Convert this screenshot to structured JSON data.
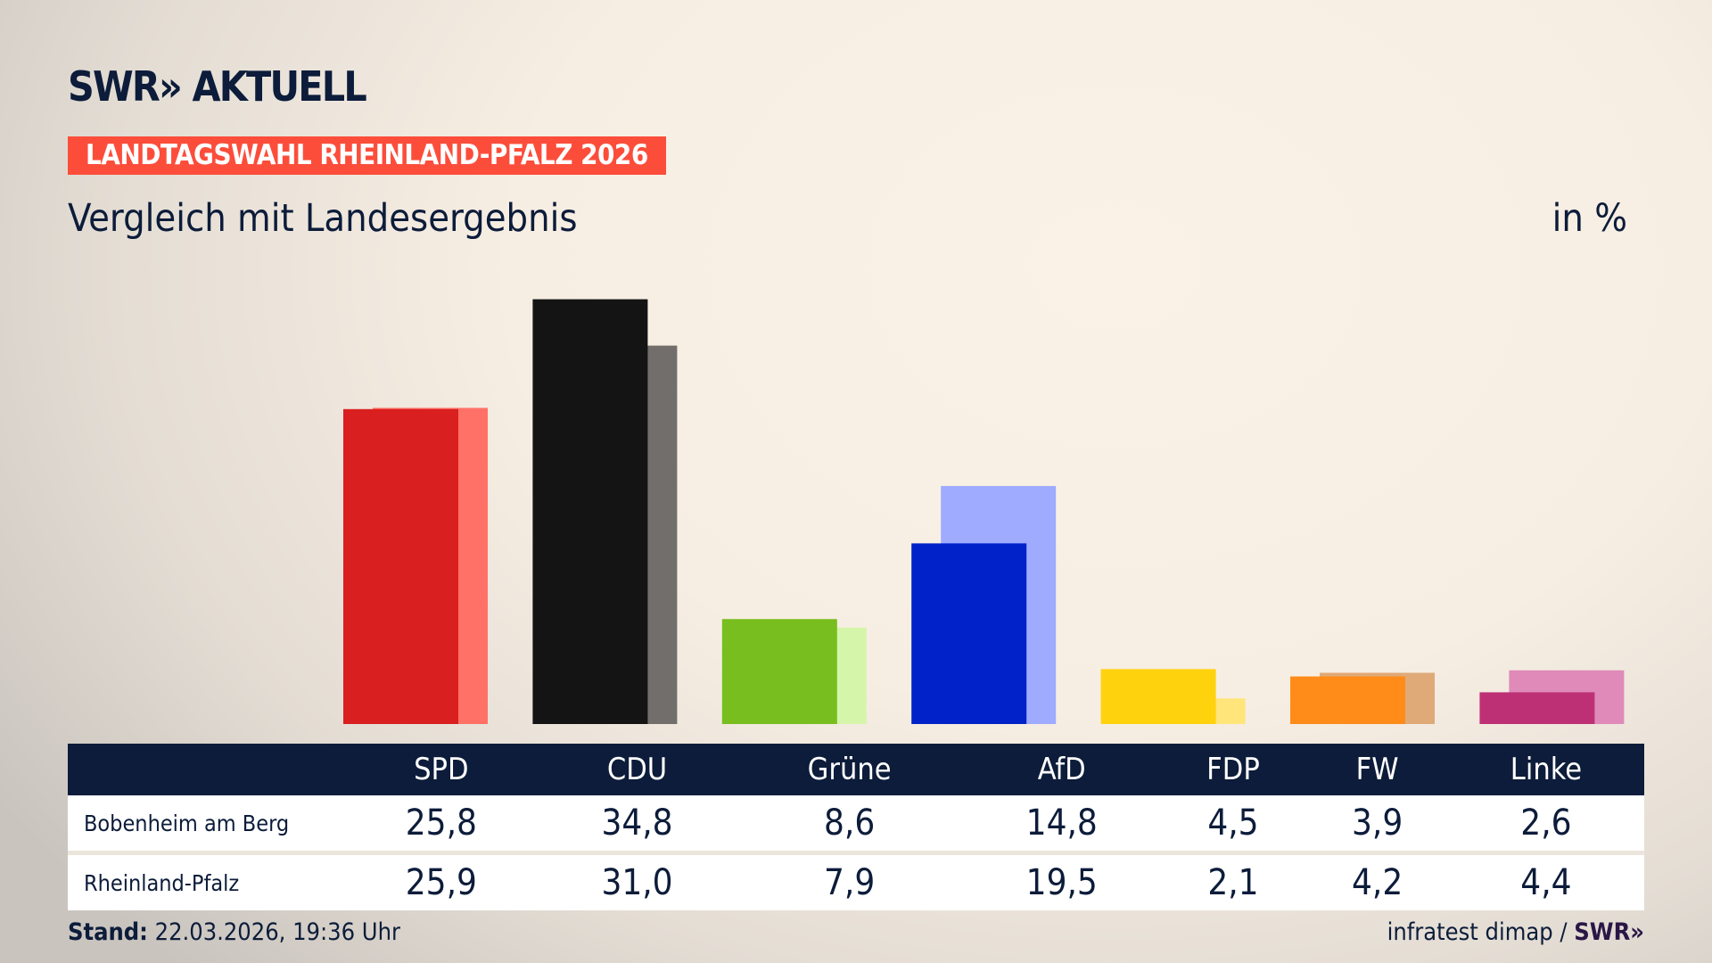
{
  "header": {
    "logo": "SWR» AKTUELL",
    "banner": "LANDTAGSWAHL RHEINLAND-PFALZ 2026",
    "subtitle": "Vergleich mit Landesergebnis",
    "unit": "in %"
  },
  "chart_data": {
    "type": "bar",
    "categories": [
      "SPD",
      "CDU",
      "Grüne",
      "AfD",
      "FDP",
      "FW",
      "Linke"
    ],
    "series": [
      {
        "name": "Bobenheim am Berg",
        "values": [
          25.8,
          34.8,
          8.6,
          14.8,
          4.5,
          3.9,
          2.6
        ],
        "colors": [
          "#d91f1f",
          "#141414",
          "#78be1e",
          "#0022c8",
          "#ffd20e",
          "#ff8c19",
          "#be3075"
        ]
      },
      {
        "name": "Rheinland-Pfalz",
        "values": [
          25.9,
          31.0,
          7.9,
          19.5,
          2.1,
          4.2,
          4.4
        ],
        "colors": [
          "#ff7167",
          "#716e6b",
          "#d5f5aa",
          "#9eabff",
          "#ffe57a",
          "#dfaa78",
          "#df8ab8"
        ]
      }
    ],
    "ylim": [
      0,
      40
    ],
    "grid": false
  },
  "table": {
    "headers": [
      "SPD",
      "CDU",
      "Grüne",
      "AfD",
      "FDP",
      "FW",
      "Linke"
    ],
    "rows": [
      {
        "label": "Bobenheim am Berg",
        "values": [
          "25,8",
          "34,8",
          "8,6",
          "14,8",
          "4,5",
          "3,9",
          "2,6"
        ]
      },
      {
        "label": "Rheinland-Pfalz",
        "values": [
          "25,9",
          "31,0",
          "7,9",
          "19,5",
          "2,1",
          "4,2",
          "4,4"
        ]
      }
    ]
  },
  "footer": {
    "stand_label": "Stand:",
    "stand_value": "22.03.2026, 19:36 Uhr",
    "source": "infratest dimap /",
    "source_logo": "SWR»"
  }
}
